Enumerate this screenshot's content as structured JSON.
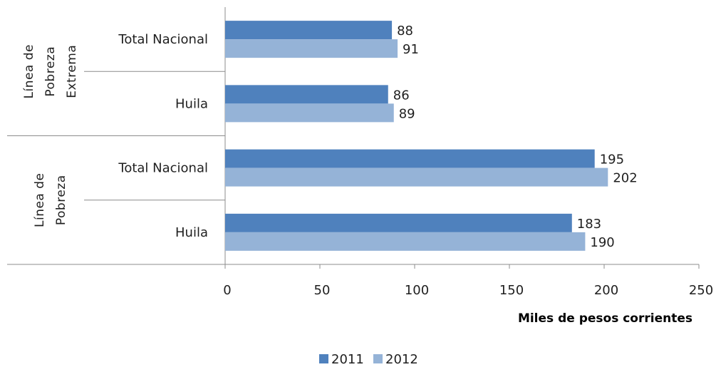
{
  "chart_data": {
    "type": "bar",
    "orientation": "horizontal",
    "groups": [
      {
        "label_lines": [
          "Línea de",
          "Pobreza",
          "Extrema"
        ],
        "categories": [
          {
            "label": "Total Nacional",
            "values": [
              88,
              91
            ]
          },
          {
            "label": "Huila",
            "values": [
              86,
              89
            ]
          }
        ]
      },
      {
        "label_lines": [
          "Línea de",
          "Pobreza"
        ],
        "categories": [
          {
            "label": "Total Nacional",
            "values": [
              195,
              202
            ]
          },
          {
            "label": "Huila",
            "values": [
              183,
              190
            ]
          }
        ]
      }
    ],
    "series": [
      {
        "name": "2011",
        "color": "#4f81bd"
      },
      {
        "name": "2012",
        "color": "#95b3d7"
      }
    ],
    "xlabel": "Miles de pesos corrientes",
    "xlim": [
      0,
      250
    ],
    "xticks": [
      0,
      50,
      100,
      150,
      200,
      250
    ],
    "grid": false,
    "legend_position": "bottom"
  }
}
